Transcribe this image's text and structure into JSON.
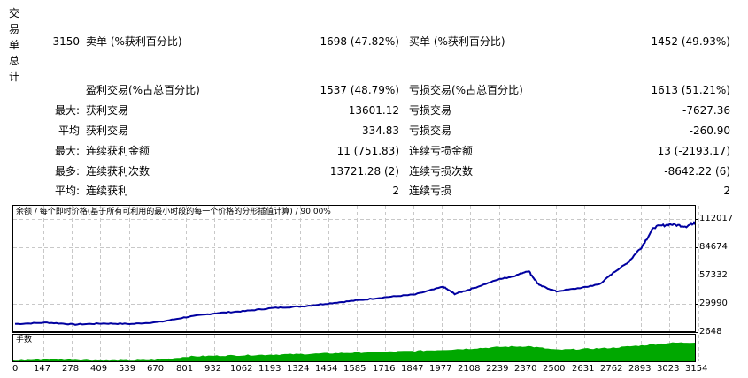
{
  "summary": {
    "vertical_title": [
      "交",
      "易",
      "单",
      "总",
      "计"
    ],
    "total_trades": "3150",
    "rows": [
      {
        "prefix": "",
        "left_label": "卖单 (%获利百分比)",
        "left_value": "1698 (47.82%)",
        "right_label": "买单 (%获利百分比)",
        "right_value": "1452 (49.93%)"
      },
      {
        "prefix": "",
        "left_label": "盈利交易(%占总百分比)",
        "left_value": "1537 (48.79%)",
        "right_label": "亏损交易(%占总百分比)",
        "right_value": "1613 (51.21%)"
      },
      {
        "prefix": "最大:",
        "left_label": "获利交易",
        "left_value": "13601.12",
        "right_label": "亏损交易",
        "right_value": "-7627.36"
      },
      {
        "prefix": "平均",
        "left_label": "获利交易",
        "left_value": "334.83",
        "right_label": "亏损交易",
        "right_value": "-260.90"
      },
      {
        "prefix": "最大:",
        "left_label": "连续获利金额",
        "left_value": "11 (751.83)",
        "right_label": "连续亏损金额",
        "right_value": "13 (-2193.17)"
      },
      {
        "prefix": "最多:",
        "left_label": "连续获利次数",
        "left_value": "13721.28 (2)",
        "right_label": "连续亏损次数",
        "right_value": "-8642.22 (6)"
      },
      {
        "prefix": "平均:",
        "left_label": "连续获利",
        "left_value": "2",
        "right_label": "连续亏损",
        "right_value": "2"
      }
    ]
  },
  "chart": {
    "caption": "余额 / 每个即时价格(基于所有可利用的最小时段的每一个价格的分形插值计算) / 90.00%",
    "volume_caption": "手数",
    "line_color": "#0000a0",
    "volume_color": "#00a800",
    "grid_color": "#c8c8c8"
  },
  "chart_data": {
    "type": "line",
    "title": "余额 / 每个即时价格(基于所有可利用的最小时段的每一个价格的分形插值计算) / 90.00%",
    "xlabel": "",
    "ylabel": "",
    "x_ticks": [
      "0",
      "147",
      "278",
      "409",
      "539",
      "670",
      "801",
      "932",
      "1062",
      "1193",
      "1324",
      "1454",
      "1585",
      "1716",
      "1847",
      "1977",
      "2108",
      "2239",
      "2370",
      "2500",
      "2631",
      "2762",
      "2893",
      "3023",
      "3154"
    ],
    "y_ticks": [
      "112017",
      "84674",
      "57332",
      "29990",
      "2648"
    ],
    "ylim": [
      2648,
      112017
    ],
    "xlim": [
      0,
      3200
    ],
    "grid": true,
    "series": [
      {
        "name": "余额",
        "x": [
          0,
          147,
          278,
          409,
          539,
          670,
          801,
          932,
          1062,
          1193,
          1324,
          1454,
          1585,
          1716,
          1847,
          1977,
          2030,
          2108,
          2239,
          2300,
          2370,
          2420,
          2500,
          2631,
          2700,
          2762,
          2830,
          2893,
          2950,
          3023,
          3100,
          3154,
          3190
        ],
        "y": [
          10500,
          11800,
          10000,
          11000,
          10500,
          12500,
          17500,
          21000,
          23000,
          26000,
          27500,
          30500,
          33500,
          36500,
          39000,
          46500,
          39500,
          44500,
          54000,
          56500,
          62000,
          48000,
          42000,
          46000,
          49000,
          60000,
          70000,
          85000,
          104000,
          107000,
          105000,
          110000,
          107500
        ]
      },
      {
        "name": "手数",
        "x": [
          0,
          147,
          278,
          409,
          539,
          670,
          801,
          932,
          1062,
          1193,
          1324,
          1454,
          1585,
          1716,
          1847,
          1977,
          2108,
          2239,
          2370,
          2500,
          2631,
          2762,
          2893,
          3023,
          3154
        ],
        "y": [
          0.05,
          0.12,
          0.1,
          0.05,
          0.05,
          0.1,
          0.3,
          0.35,
          0.38,
          0.42,
          0.45,
          0.5,
          0.55,
          0.6,
          0.65,
          0.72,
          0.8,
          0.9,
          0.95,
          0.72,
          0.78,
          0.85,
          1.0,
          1.15,
          1.2
        ]
      }
    ]
  }
}
